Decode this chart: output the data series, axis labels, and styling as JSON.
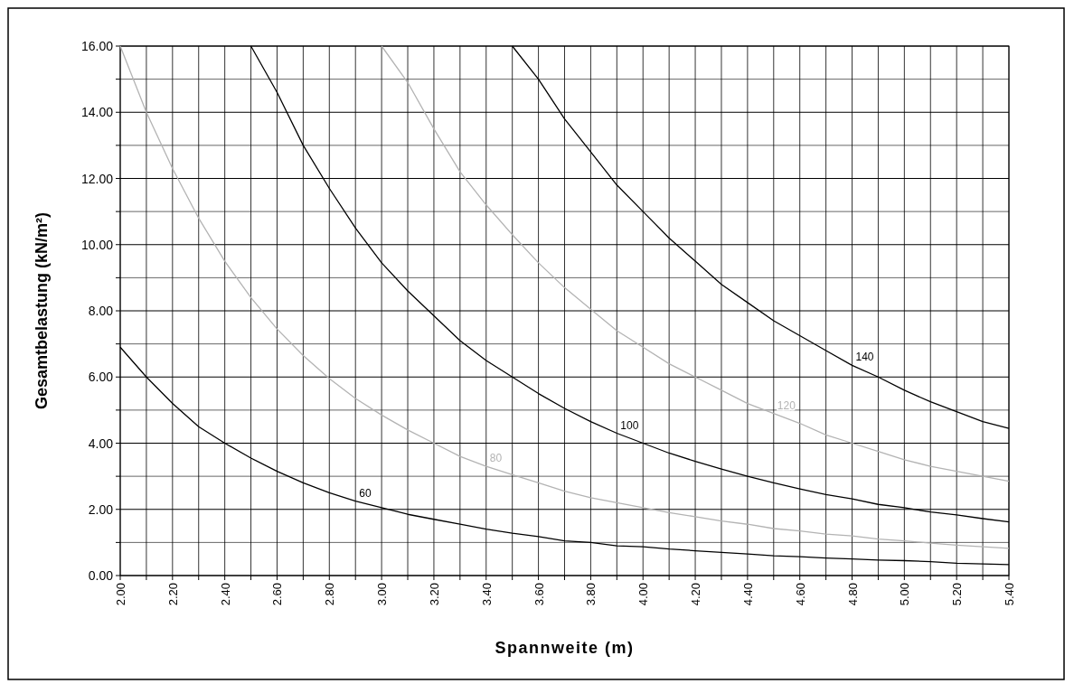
{
  "chart_data": {
    "type": "line",
    "xlabel": "Spannweite (m)",
    "ylabel": "Gesamtbelastung (kN/m²)",
    "xlim": [
      2.0,
      5.4
    ],
    "ylim": [
      0,
      16
    ],
    "xticks": [
      {
        "value": 2.0,
        "label": "2.00"
      },
      {
        "value": 2.1,
        "label": null
      },
      {
        "value": 2.2,
        "label": "2.20"
      },
      {
        "value": 2.3,
        "label": null
      },
      {
        "value": 2.4,
        "label": "2.40"
      },
      {
        "value": 2.5,
        "label": null
      },
      {
        "value": 2.6,
        "label": "2.60"
      },
      {
        "value": 2.7,
        "label": null
      },
      {
        "value": 2.8,
        "label": "2.80"
      },
      {
        "value": 2.9,
        "label": null
      },
      {
        "value": 3.0,
        "label": "3.00"
      },
      {
        "value": 3.1,
        "label": null
      },
      {
        "value": 3.2,
        "label": "3.20"
      },
      {
        "value": 3.3,
        "label": null
      },
      {
        "value": 3.4,
        "label": "3.40"
      },
      {
        "value": 3.5,
        "label": null
      },
      {
        "value": 3.6,
        "label": "3.60"
      },
      {
        "value": 3.7,
        "label": null
      },
      {
        "value": 3.8,
        "label": "3.80"
      },
      {
        "value": 3.9,
        "label": null
      },
      {
        "value": 4.0,
        "label": "4.00"
      },
      {
        "value": 4.1,
        "label": null
      },
      {
        "value": 4.2,
        "label": "4.20"
      },
      {
        "value": 4.3,
        "label": null
      },
      {
        "value": 4.4,
        "label": "4.40"
      },
      {
        "value": 4.5,
        "label": null
      },
      {
        "value": 4.6,
        "label": "4.60"
      },
      {
        "value": 4.7,
        "label": null
      },
      {
        "value": 4.8,
        "label": "4.80"
      },
      {
        "value": 4.9,
        "label": null
      },
      {
        "value": 5.0,
        "label": "5.00"
      },
      {
        "value": 5.1,
        "label": null
      },
      {
        "value": 5.2,
        "label": "5.20"
      },
      {
        "value": 5.3,
        "label": null
      },
      {
        "value": 5.4,
        "label": "5.40"
      }
    ],
    "yticks": [
      {
        "value": 0,
        "label": "0.00"
      },
      {
        "value": 1,
        "label": null
      },
      {
        "value": 2,
        "label": "2.00"
      },
      {
        "value": 3,
        "label": null
      },
      {
        "value": 4,
        "label": "4.00"
      },
      {
        "value": 5,
        "label": null
      },
      {
        "value": 6,
        "label": "6.00"
      },
      {
        "value": 7,
        "label": null
      },
      {
        "value": 8,
        "label": "8.00"
      },
      {
        "value": 9,
        "label": null
      },
      {
        "value": 10,
        "label": "10.00"
      },
      {
        "value": 11,
        "label": null
      },
      {
        "value": 12,
        "label": "12.00"
      },
      {
        "value": 13,
        "label": null
      },
      {
        "value": 14,
        "label": "14.00"
      },
      {
        "value": 15,
        "label": null
      },
      {
        "value": 16,
        "label": "16.00"
      }
    ],
    "grid": true,
    "marker": "none",
    "line_style": "solid",
    "series": [
      {
        "name": "60",
        "color": "#000000",
        "x": [
          2.0,
          2.1,
          2.2,
          2.3,
          2.4,
          2.5,
          2.6,
          2.7,
          2.8,
          2.9,
          3.0,
          3.1,
          3.2,
          3.3,
          3.4,
          3.5,
          3.6,
          3.7,
          3.8,
          3.9,
          4.0,
          4.1,
          4.2,
          4.3,
          4.4,
          4.5,
          4.6,
          4.7,
          4.8,
          4.9,
          5.0,
          5.1,
          5.2,
          5.3,
          5.4
        ],
        "values": [
          6.9,
          6.0,
          5.2,
          4.5,
          4.0,
          3.55,
          3.15,
          2.8,
          2.5,
          2.25,
          2.05,
          1.85,
          1.7,
          1.55,
          1.4,
          1.28,
          1.18,
          1.05,
          1.0,
          0.9,
          0.87,
          0.8,
          0.75,
          0.7,
          0.65,
          0.6,
          0.57,
          0.53,
          0.5,
          0.47,
          0.45,
          0.42,
          0.37,
          0.35,
          0.33
        ]
      },
      {
        "name": "80",
        "color": "#b3b3b3",
        "x": [
          2.0,
          2.1,
          2.2,
          2.3,
          2.4,
          2.5,
          2.6,
          2.7,
          2.8,
          2.9,
          3.0,
          3.1,
          3.2,
          3.3,
          3.4,
          3.5,
          3.6,
          3.7,
          3.8,
          3.9,
          4.0,
          4.1,
          4.2,
          4.3,
          4.4,
          4.5,
          4.6,
          4.7,
          4.8,
          4.9,
          5.0,
          5.1,
          5.2,
          5.3,
          5.4
        ],
        "values": [
          16.0,
          14.0,
          12.3,
          10.8,
          9.5,
          8.4,
          7.45,
          6.65,
          5.95,
          5.35,
          4.85,
          4.4,
          4.0,
          3.6,
          3.3,
          3.05,
          2.8,
          2.55,
          2.35,
          2.2,
          2.05,
          1.9,
          1.78,
          1.65,
          1.55,
          1.42,
          1.35,
          1.25,
          1.2,
          1.1,
          1.05,
          0.98,
          0.92,
          0.87,
          0.82
        ]
      },
      {
        "name": "100",
        "color": "#000000",
        "x": [
          2.5,
          2.6,
          2.7,
          2.8,
          2.9,
          3.0,
          3.1,
          3.2,
          3.3,
          3.4,
          3.5,
          3.6,
          3.7,
          3.8,
          3.9,
          4.0,
          4.1,
          4.2,
          4.3,
          4.4,
          4.5,
          4.6,
          4.7,
          4.8,
          4.9,
          5.0,
          5.1,
          5.2,
          5.3,
          5.4
        ],
        "values": [
          16.0,
          14.6,
          13.0,
          11.7,
          10.5,
          9.45,
          8.6,
          7.85,
          7.1,
          6.5,
          6.0,
          5.5,
          5.05,
          4.65,
          4.3,
          4.0,
          3.7,
          3.45,
          3.22,
          3.0,
          2.8,
          2.62,
          2.45,
          2.32,
          2.15,
          2.05,
          1.92,
          1.83,
          1.72,
          1.62
        ]
      },
      {
        "name": "120",
        "color": "#b3b3b3",
        "x": [
          3.0,
          3.1,
          3.2,
          3.3,
          3.4,
          3.5,
          3.6,
          3.7,
          3.8,
          3.9,
          4.0,
          4.1,
          4.2,
          4.3,
          4.4,
          4.5,
          4.6,
          4.7,
          4.8,
          4.9,
          5.0,
          5.1,
          5.2,
          5.3,
          5.4
        ],
        "values": [
          16.0,
          14.9,
          13.5,
          12.2,
          11.2,
          10.3,
          9.45,
          8.7,
          8.05,
          7.4,
          6.9,
          6.4,
          6.0,
          5.6,
          5.2,
          4.9,
          4.6,
          4.25,
          4.0,
          3.75,
          3.5,
          3.3,
          3.15,
          3.0,
          2.85
        ]
      },
      {
        "name": "140",
        "color": "#000000",
        "x": [
          3.5,
          3.6,
          3.7,
          3.8,
          3.9,
          4.0,
          4.1,
          4.2,
          4.3,
          4.4,
          4.5,
          4.6,
          4.7,
          4.8,
          4.9,
          5.0,
          5.1,
          5.2,
          5.3,
          5.4
        ],
        "values": [
          16.0,
          15.0,
          13.8,
          12.8,
          11.8,
          11.0,
          10.2,
          9.5,
          8.8,
          8.25,
          7.7,
          7.25,
          6.8,
          6.35,
          6.0,
          5.6,
          5.25,
          4.95,
          4.65,
          4.45
        ]
      }
    ]
  }
}
